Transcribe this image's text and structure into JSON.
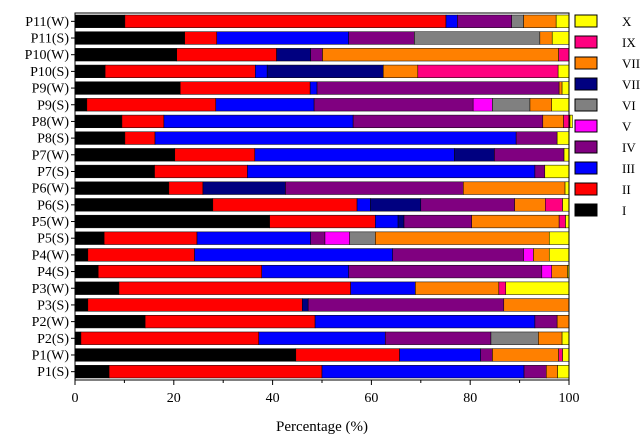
{
  "chart_data": {
    "type": "bar",
    "orientation": "horizontal",
    "stacked": true,
    "title": "",
    "xlabel": "Percentage (%)",
    "ylabel": "",
    "xlim": [
      0,
      100
    ],
    "x_ticks": [
      0,
      20,
      40,
      60,
      80,
      100
    ],
    "grid": false,
    "legend_position": "right",
    "categories": [
      "P11(W)",
      "P11(S)",
      "P10(W)",
      "P10(S)",
      "P9(W)",
      "P9(S)",
      "P8(W)",
      "P8(S)",
      "P7(W)",
      "P7(S)",
      "P6(W)",
      "P6(S)",
      "P5(W)",
      "P5(S)",
      "P4(W)",
      "P4(S)",
      "P3(W)",
      "P3(S)",
      "P2(W)",
      "P2(S)",
      "P1(W)",
      "P1(S)"
    ],
    "series": [
      {
        "name": "I",
        "color": "#000000",
        "values": [
          10.1,
          22.2,
          20.6,
          6.1,
          21.3,
          2.4,
          9.5,
          10.1,
          20.2,
          16.1,
          19.0,
          27.9,
          39.4,
          5.9,
          2.6,
          4.7,
          8.9,
          2.6,
          14.2,
          1.2,
          44.7,
          6.9
        ]
      },
      {
        "name": "II",
        "color": "#ff0000",
        "values": [
          65.0,
          6.5,
          20.2,
          30.4,
          26.3,
          26.1,
          8.5,
          6.1,
          16.2,
          18.8,
          6.9,
          29.2,
          21.4,
          18.8,
          21.6,
          33.1,
          46.9,
          43.4,
          34.4,
          36.0,
          21.0,
          43.1
        ]
      },
      {
        "name": "III",
        "color": "#0000ff",
        "values": [
          2.3,
          26.7,
          0,
          2.4,
          1.4,
          19.9,
          38.3,
          73.1,
          40.4,
          58.2,
          0,
          2.7,
          4.6,
          23.0,
          40.1,
          17.6,
          13.1,
          0,
          44.5,
          25.6,
          16.4,
          40.9
        ]
      },
      {
        "name": "VII",
        "color": "#000080",
        "values": [
          0,
          0,
          6.9,
          23.5,
          0,
          0,
          0,
          0,
          8.1,
          0,
          16.7,
          10.2,
          1.2,
          0,
          0,
          0,
          0,
          1.2,
          0,
          0,
          0,
          0
        ]
      },
      {
        "name": "IV",
        "color": "#800080",
        "values": [
          11.0,
          13.3,
          2.4,
          0,
          49.0,
          32.2,
          38.4,
          8.3,
          14.1,
          2.0,
          36.0,
          19.0,
          13.7,
          2.9,
          26.5,
          39.1,
          0,
          39.6,
          4.5,
          21.4,
          2.4,
          4.5
        ]
      },
      {
        "name": "V",
        "color": "#ff00ff",
        "values": [
          0,
          0,
          0,
          0,
          0,
          3.9,
          0,
          0,
          0,
          0,
          0,
          0,
          0,
          5.0,
          2.0,
          2.0,
          0,
          0,
          0,
          0,
          0,
          0
        ]
      },
      {
        "name": "VI",
        "color": "#808080",
        "values": [
          2.4,
          25.4,
          0,
          0,
          0,
          7.6,
          0,
          0,
          0,
          0,
          0,
          0,
          0,
          5.2,
          0,
          0,
          0,
          0,
          0,
          9.6,
          0,
          0
        ]
      },
      {
        "name": "VIII",
        "color": "#ff8000",
        "values": [
          6.6,
          2.5,
          47.8,
          7.0,
          0.6,
          4.4,
          4.2,
          0,
          0,
          0,
          20.6,
          6.2,
          17.7,
          35.2,
          3.2,
          3.2,
          16.9,
          13.2,
          2.4,
          4.8,
          13.4,
          2.3
        ]
      },
      {
        "name": "IX",
        "color": "#ff0080",
        "values": [
          0,
          0,
          2.1,
          28.4,
          0,
          0,
          1.3,
          0,
          0,
          0,
          0,
          3.5,
          1.3,
          0,
          0,
          0,
          1.4,
          0,
          0,
          0,
          0.8,
          0
        ]
      },
      {
        "name": "X",
        "color": "#ffff00",
        "values": [
          2.6,
          3.4,
          0,
          2.2,
          1.4,
          3.5,
          0.5,
          2.4,
          1.0,
          4.9,
          0.8,
          1.3,
          0.7,
          4.0,
          4.0,
          0.3,
          12.8,
          0,
          0,
          1.4,
          1.3,
          2.3
        ]
      }
    ],
    "legend_order": [
      "X",
      "IX",
      "VIII",
      "VII",
      "VI",
      "V",
      "IV",
      "III",
      "II",
      "I"
    ]
  }
}
